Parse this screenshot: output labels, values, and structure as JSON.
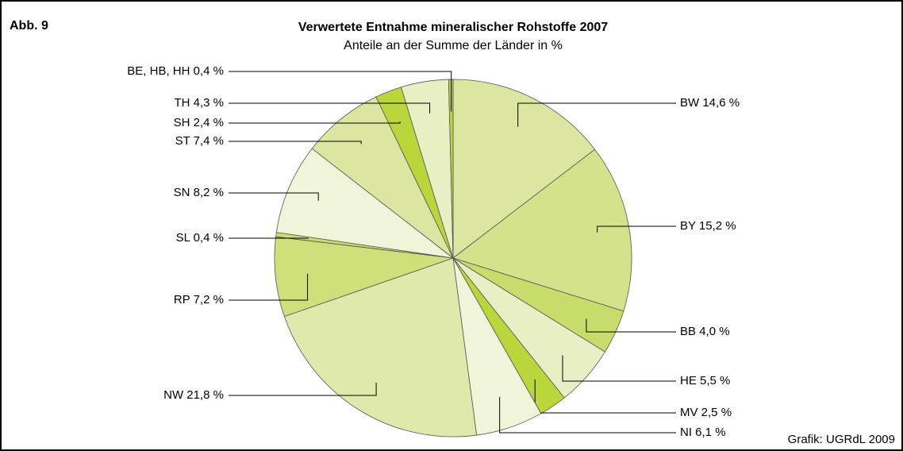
{
  "chart_data": {
    "type": "pie",
    "figure_label": "Abb. 9",
    "title": "Verwertete Entnahme mineralischer Rohstoffe 2007",
    "subtitle": "Anteile an der Summe der Länder in %",
    "source": "Grafik: UGRdL 2009",
    "categories": [
      "BW",
      "BY",
      "BB",
      "HE",
      "MV",
      "NI",
      "NW",
      "RP",
      "SL",
      "SN",
      "ST",
      "SH",
      "TH",
      "BE, HB, HH"
    ],
    "values": [
      14.6,
      15.2,
      4.0,
      5.5,
      2.5,
      6.1,
      21.8,
      7.2,
      0.4,
      8.2,
      7.4,
      2.4,
      4.3,
      0.4
    ],
    "value_labels": [
      "14,6 %",
      "15,2 %",
      "4,0 %",
      "5,5 %",
      "2,5 %",
      "6,1 %",
      "21,8 %",
      "7,2 %",
      "0,4 %",
      "8,2 %",
      "7,4 %",
      "2,4 %",
      "4,3 %",
      "0,4 %"
    ],
    "colors": [
      "#dce6a0",
      "#d4e28c",
      "#c8dc6c",
      "#e8efc4",
      "#b9d63b",
      "#f0f4d8",
      "#e0e9ac",
      "#cfe07a",
      "#c8dc6c",
      "#f0f4d8",
      "#dce6a0",
      "#b9d63b",
      "#e8efc4",
      "#b9d63b"
    ]
  }
}
